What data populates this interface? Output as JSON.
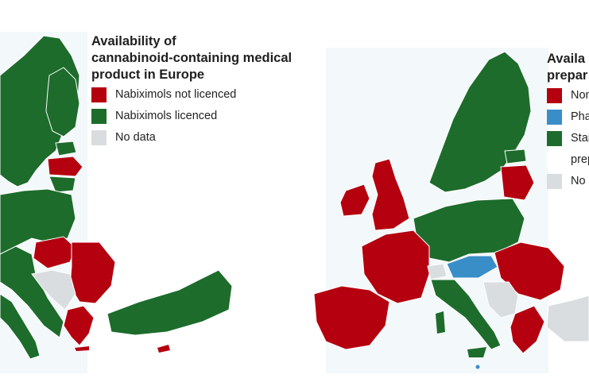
{
  "left_map": {
    "title": "Availability of\ncannabinoid-containing medical\nproduct in Europe",
    "legend": [
      {
        "label": "Nabiximols not licenced",
        "color": "#b4000f"
      },
      {
        "label": "Nabiximols licenced",
        "color": "#1d6c2c"
      },
      {
        "label": "No data",
        "color": "#d9dde0"
      }
    ]
  },
  "right_map": {
    "title_fragment": "Availa",
    "title_fragment_2": "prepar",
    "legend": [
      {
        "label": "Non",
        "color": "#b4000f"
      },
      {
        "label": "Pha",
        "color": "#3a8ec8"
      },
      {
        "label": "Star",
        "color": "#1d6c2c"
      },
      {
        "label": "prep",
        "color": "#ffffff"
      },
      {
        "label": "No d",
        "color": "#d9dde0"
      }
    ]
  },
  "colors": {
    "red": "#b4000f",
    "green": "#1d6c2c",
    "blue": "#3a8ec8",
    "grey": "#d9dde0",
    "sea": "#eef5f8"
  }
}
